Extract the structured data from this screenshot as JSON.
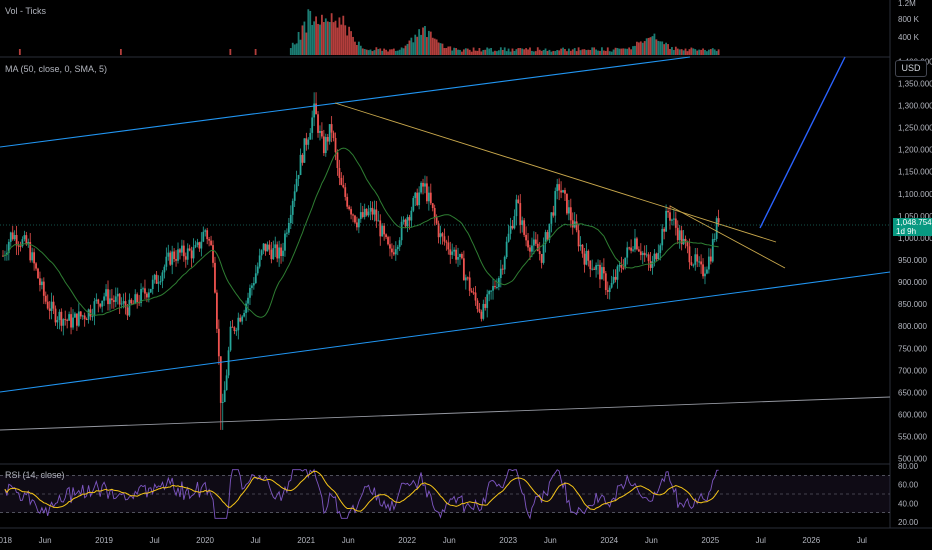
{
  "vol_label": "Vol - Ticks",
  "ma_label": "MA (50, close, 0, SMA, 5)",
  "rsi_label": "RSI (14, close)",
  "currency": "USD",
  "last_price": "1,048.754",
  "price_countdown": "1d 9h",
  "colors": {
    "background": "#000000",
    "up": "#26a69a",
    "down": "#ef5350",
    "vol_up": "#26a69a",
    "vol_down": "#ef5350",
    "ma": "#2e7d32",
    "channel": "#2196f3",
    "trend": "#c9a84c",
    "support": "#9598a1",
    "projection": "#2962ff",
    "rsi": "#7e57c2",
    "rsi_ma": "#f5c518",
    "price_tag": "#089981"
  },
  "price_axis": [
    "1,400.000",
    "1,350.000",
    "1,300.000",
    "1,250.000",
    "1,200.000",
    "1,150.000",
    "1,100.000",
    "1,050.000",
    "1,000.000",
    "950.000",
    "900.000",
    "850.000",
    "800.000",
    "750.000",
    "700.000",
    "650.000",
    "600.000",
    "550.000",
    "500.000"
  ],
  "vol_axis": [
    "1.2M",
    "800 K",
    "400 K"
  ],
  "rsi_axis": [
    "80.00",
    "60.00",
    "40.00",
    "20.00"
  ],
  "time_axis": [
    "2018",
    "Jun",
    "2019",
    "Jul",
    "2020",
    "Jul",
    "2021",
    "Jun",
    "2022",
    "Jun",
    "2023",
    "Jun",
    "2024",
    "Jun",
    "2025",
    "Jul",
    "2026",
    "Jul"
  ],
  "chart_data": {
    "type": "candlestick",
    "title": "",
    "panes": [
      "volume",
      "price",
      "rsi"
    ],
    "price_range": [
      490,
      1410
    ],
    "rsi_range": [
      20,
      80
    ],
    "rsi_levels": [
      70,
      50,
      30
    ],
    "legend": "top-left",
    "grid": false,
    "price_path": [
      [
        "2018-01",
        960
      ],
      [
        "2018-02",
        1010
      ],
      [
        "2018-04",
        980
      ],
      [
        "2018-06",
        860
      ],
      [
        "2018-07",
        830
      ],
      [
        "2018-09",
        810
      ],
      [
        "2018-11",
        830
      ],
      [
        "2019-01",
        870
      ],
      [
        "2019-04",
        840
      ],
      [
        "2019-07",
        900
      ],
      [
        "2019-09",
        960
      ],
      [
        "2019-12",
        970
      ],
      [
        "2020-01",
        1020
      ],
      [
        "2020-02",
        960
      ],
      [
        "2020-03",
        590
      ],
      [
        "2020-04",
        780
      ],
      [
        "2020-06",
        860
      ],
      [
        "2020-08",
        980
      ],
      [
        "2020-10",
        960
      ],
      [
        "2020-12",
        1150
      ],
      [
        "2021-02",
        1290
      ],
      [
        "2021-03",
        1200
      ],
      [
        "2021-04",
        1250
      ],
      [
        "2021-05",
        1120
      ],
      [
        "2021-07",
        1040
      ],
      [
        "2021-09",
        1060
      ],
      [
        "2021-11",
        960
      ],
      [
        "2022-01",
        1050
      ],
      [
        "2022-03",
        1120
      ],
      [
        "2022-05",
        1000
      ],
      [
        "2022-07",
        960
      ],
      [
        "2022-09",
        860
      ],
      [
        "2022-10",
        830
      ],
      [
        "2022-12",
        920
      ],
      [
        "2023-02",
        1080
      ],
      [
        "2023-03",
        1000
      ],
      [
        "2023-05",
        960
      ],
      [
        "2023-07",
        1120
      ],
      [
        "2023-08",
        1070
      ],
      [
        "2023-10",
        960
      ],
      [
        "2023-12",
        920
      ],
      [
        "2024-01",
        880
      ],
      [
        "2024-03",
        960
      ],
      [
        "2024-04",
        1000
      ],
      [
        "2024-06",
        930
      ],
      [
        "2024-08",
        1060
      ],
      [
        "2024-10",
        980
      ],
      [
        "2024-12",
        920
      ],
      [
        "2025-01",
        960
      ],
      [
        "2025-02",
        1050
      ]
    ],
    "volume_peaks": [
      [
        "2021-02",
        1200000
      ],
      [
        "2021-05",
        900000
      ],
      [
        "2022-03",
        600000
      ],
      [
        "2024-06",
        400000
      ]
    ]
  }
}
